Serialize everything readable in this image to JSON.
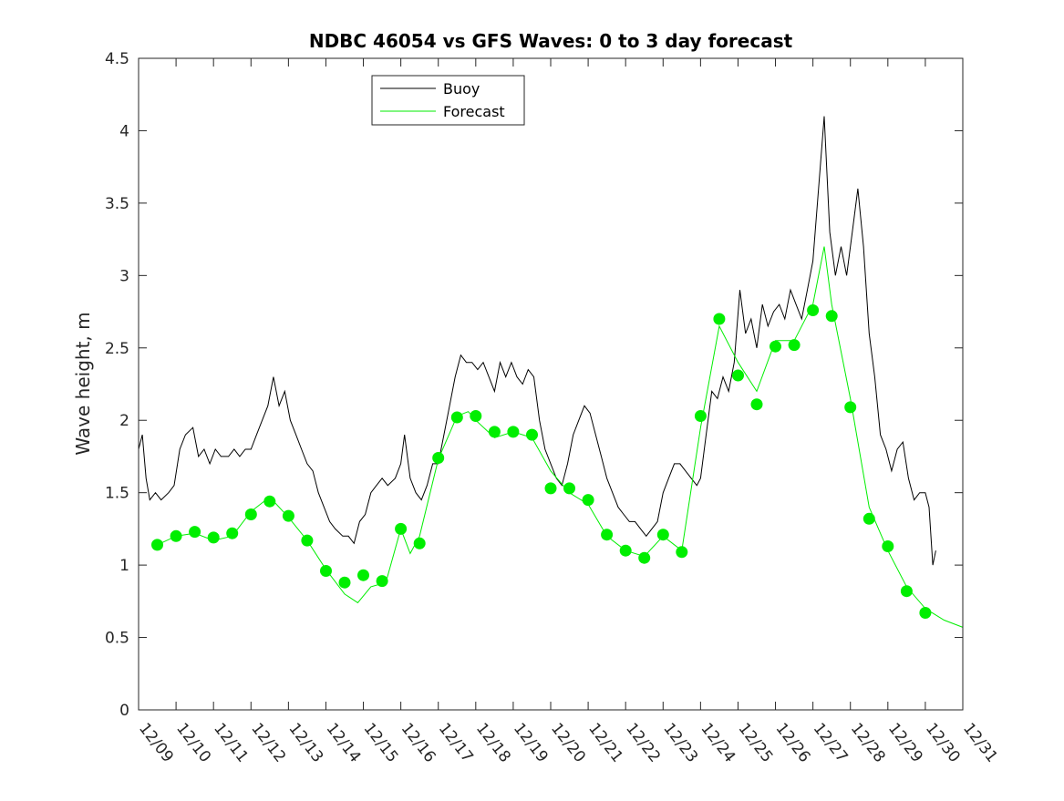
{
  "chart_data": {
    "type": "line",
    "title": "NDBC 46054 vs GFS Waves: 0 to 3 day forecast",
    "xlabel": "",
    "ylabel": "Wave height, m",
    "xlim": [
      0,
      22
    ],
    "ylim": [
      0,
      4.5
    ],
    "grid": false,
    "legend_position": "top-center",
    "x_tick_labels": [
      "12/09",
      "12/10",
      "12/11",
      "12/12",
      "12/13",
      "12/14",
      "12/15",
      "12/16",
      "12/17",
      "12/18",
      "12/19",
      "12/20",
      "12/21",
      "12/22",
      "12/23",
      "12/24",
      "12/25",
      "12/26",
      "12/27",
      "12/28",
      "12/29",
      "12/30",
      "12/31"
    ],
    "y_tick_values": [
      0,
      0.5,
      1,
      1.5,
      2,
      2.5,
      3,
      3.5,
      4,
      4.5
    ],
    "y_tick_labels": [
      "0",
      "0.5",
      "1",
      "1.5",
      "2",
      "2.5",
      "3",
      "3.5",
      "4",
      "4.5"
    ],
    "x_unit": "days since 12/09 00Z",
    "series": [
      {
        "name": "Buoy",
        "color": "#000000",
        "style": "line",
        "points": [
          [
            0,
            1.8
          ],
          [
            0.1,
            1.9
          ],
          [
            0.2,
            1.6
          ],
          [
            0.3,
            1.45
          ],
          [
            0.45,
            1.5
          ],
          [
            0.6,
            1.45
          ],
          [
            0.8,
            1.5
          ],
          [
            0.95,
            1.55
          ],
          [
            1.1,
            1.8
          ],
          [
            1.25,
            1.9
          ],
          [
            1.45,
            1.95
          ],
          [
            1.6,
            1.75
          ],
          [
            1.75,
            1.8
          ],
          [
            1.9,
            1.7
          ],
          [
            2.05,
            1.8
          ],
          [
            2.2,
            1.75
          ],
          [
            2.4,
            1.75
          ],
          [
            2.55,
            1.8
          ],
          [
            2.7,
            1.75
          ],
          [
            2.85,
            1.8
          ],
          [
            3.0,
            1.8
          ],
          [
            3.15,
            1.9
          ],
          [
            3.3,
            2.0
          ],
          [
            3.45,
            2.1
          ],
          [
            3.6,
            2.3
          ],
          [
            3.75,
            2.1
          ],
          [
            3.9,
            2.2
          ],
          [
            4.05,
            2.0
          ],
          [
            4.2,
            1.9
          ],
          [
            4.35,
            1.8
          ],
          [
            4.5,
            1.7
          ],
          [
            4.65,
            1.65
          ],
          [
            4.8,
            1.5
          ],
          [
            4.95,
            1.4
          ],
          [
            5.1,
            1.3
          ],
          [
            5.25,
            1.25
          ],
          [
            5.45,
            1.2
          ],
          [
            5.6,
            1.2
          ],
          [
            5.75,
            1.15
          ],
          [
            5.9,
            1.3
          ],
          [
            6.05,
            1.35
          ],
          [
            6.2,
            1.5
          ],
          [
            6.35,
            1.55
          ],
          [
            6.5,
            1.6
          ],
          [
            6.65,
            1.55
          ],
          [
            6.85,
            1.6
          ],
          [
            7.0,
            1.7
          ],
          [
            7.1,
            1.9
          ],
          [
            7.25,
            1.6
          ],
          [
            7.4,
            1.5
          ],
          [
            7.55,
            1.45
          ],
          [
            7.7,
            1.55
          ],
          [
            7.85,
            1.7
          ],
          [
            8.0,
            1.7
          ],
          [
            8.15,
            1.9
          ],
          [
            8.3,
            2.1
          ],
          [
            8.45,
            2.3
          ],
          [
            8.6,
            2.45
          ],
          [
            8.75,
            2.4
          ],
          [
            8.9,
            2.4
          ],
          [
            9.05,
            2.35
          ],
          [
            9.2,
            2.4
          ],
          [
            9.35,
            2.3
          ],
          [
            9.5,
            2.2
          ],
          [
            9.65,
            2.4
          ],
          [
            9.8,
            2.3
          ],
          [
            9.95,
            2.4
          ],
          [
            10.1,
            2.3
          ],
          [
            10.25,
            2.25
          ],
          [
            10.4,
            2.35
          ],
          [
            10.55,
            2.3
          ],
          [
            10.7,
            2.0
          ],
          [
            10.85,
            1.8
          ],
          [
            11.0,
            1.7
          ],
          [
            11.15,
            1.6
          ],
          [
            11.3,
            1.55
          ],
          [
            11.45,
            1.7
          ],
          [
            11.6,
            1.9
          ],
          [
            11.75,
            2.0
          ],
          [
            11.9,
            2.1
          ],
          [
            12.05,
            2.05
          ],
          [
            12.2,
            1.9
          ],
          [
            12.35,
            1.75
          ],
          [
            12.5,
            1.6
          ],
          [
            12.65,
            1.5
          ],
          [
            12.8,
            1.4
          ],
          [
            12.95,
            1.35
          ],
          [
            13.1,
            1.3
          ],
          [
            13.25,
            1.3
          ],
          [
            13.4,
            1.25
          ],
          [
            13.55,
            1.2
          ],
          [
            13.7,
            1.25
          ],
          [
            13.85,
            1.3
          ],
          [
            14.0,
            1.5
          ],
          [
            14.15,
            1.6
          ],
          [
            14.3,
            1.7
          ],
          [
            14.45,
            1.7
          ],
          [
            14.6,
            1.65
          ],
          [
            14.75,
            1.6
          ],
          [
            14.9,
            1.55
          ],
          [
            15.0,
            1.6
          ],
          [
            15.15,
            1.9
          ],
          [
            15.3,
            2.2
          ],
          [
            15.45,
            2.15
          ],
          [
            15.6,
            2.3
          ],
          [
            15.75,
            2.2
          ],
          [
            15.9,
            2.4
          ],
          [
            16.05,
            2.9
          ],
          [
            16.2,
            2.6
          ],
          [
            16.35,
            2.7
          ],
          [
            16.5,
            2.5
          ],
          [
            16.65,
            2.8
          ],
          [
            16.8,
            2.65
          ],
          [
            16.95,
            2.75
          ],
          [
            17.1,
            2.8
          ],
          [
            17.25,
            2.7
          ],
          [
            17.4,
            2.9
          ],
          [
            17.55,
            2.8
          ],
          [
            17.7,
            2.7
          ],
          [
            17.85,
            2.9
          ],
          [
            18.0,
            3.1
          ],
          [
            18.15,
            3.6
          ],
          [
            18.3,
            4.1
          ],
          [
            18.45,
            3.3
          ],
          [
            18.6,
            3.0
          ],
          [
            18.75,
            3.2
          ],
          [
            18.9,
            3.0
          ],
          [
            19.05,
            3.3
          ],
          [
            19.2,
            3.6
          ],
          [
            19.35,
            3.2
          ],
          [
            19.5,
            2.6
          ],
          [
            19.65,
            2.3
          ],
          [
            19.8,
            1.9
          ],
          [
            19.95,
            1.8
          ],
          [
            20.1,
            1.65
          ],
          [
            20.25,
            1.8
          ],
          [
            20.4,
            1.85
          ],
          [
            20.55,
            1.6
          ],
          [
            20.7,
            1.45
          ],
          [
            20.85,
            1.5
          ],
          [
            21.0,
            1.5
          ],
          [
            21.1,
            1.4
          ],
          [
            21.2,
            1.0
          ],
          [
            21.28,
            1.1
          ]
        ]
      },
      {
        "name": "Forecast",
        "color": "#00ee00",
        "style": "line",
        "points": [
          [
            0.5,
            1.14
          ],
          [
            1,
            1.2
          ],
          [
            1.5,
            1.22
          ],
          [
            2,
            1.17
          ],
          [
            2.5,
            1.2
          ],
          [
            3,
            1.37
          ],
          [
            3.5,
            1.47
          ],
          [
            4,
            1.33
          ],
          [
            4.5,
            1.17
          ],
          [
            5,
            0.97
          ],
          [
            5.5,
            0.8
          ],
          [
            5.85,
            0.74
          ],
          [
            6.2,
            0.85
          ],
          [
            6.6,
            0.88
          ],
          [
            7,
            1.25
          ],
          [
            7.25,
            1.08
          ],
          [
            7.5,
            1.2
          ],
          [
            8,
            1.73
          ],
          [
            8.5,
            2.03
          ],
          [
            8.8,
            2.06
          ],
          [
            9,
            2.0
          ],
          [
            9.5,
            1.88
          ],
          [
            10,
            1.92
          ],
          [
            10.5,
            1.88
          ],
          [
            11,
            1.65
          ],
          [
            11.5,
            1.5
          ],
          [
            12,
            1.42
          ],
          [
            12.5,
            1.2
          ],
          [
            13,
            1.1
          ],
          [
            13.5,
            1.06
          ],
          [
            14,
            1.2
          ],
          [
            14.5,
            1.1
          ],
          [
            15,
            1.95
          ],
          [
            15.5,
            2.65
          ],
          [
            16,
            2.4
          ],
          [
            16.5,
            2.2
          ],
          [
            17,
            2.55
          ],
          [
            17.5,
            2.55
          ],
          [
            18,
            2.8
          ],
          [
            18.3,
            3.2
          ],
          [
            18.5,
            2.8
          ],
          [
            19,
            2.15
          ],
          [
            19.5,
            1.4
          ],
          [
            20,
            1.1
          ],
          [
            20.5,
            0.85
          ],
          [
            21,
            0.7
          ],
          [
            21.5,
            0.62
          ],
          [
            22,
            0.57
          ]
        ]
      }
    ],
    "forecast_markers": [
      [
        0.5,
        1.14
      ],
      [
        1,
        1.2
      ],
      [
        1.5,
        1.23
      ],
      [
        2,
        1.19
      ],
      [
        2.5,
        1.22
      ],
      [
        3,
        1.35
      ],
      [
        3.5,
        1.44
      ],
      [
        4,
        1.34
      ],
      [
        4.5,
        1.17
      ],
      [
        5,
        0.96
      ],
      [
        5.5,
        0.88
      ],
      [
        6,
        0.93
      ],
      [
        6.5,
        0.89
      ],
      [
        7,
        1.25
      ],
      [
        7.5,
        1.15
      ],
      [
        8,
        1.74
      ],
      [
        8.5,
        2.02
      ],
      [
        9,
        2.03
      ],
      [
        9.5,
        1.92
      ],
      [
        10,
        1.92
      ],
      [
        10.5,
        1.9
      ],
      [
        11,
        1.53
      ],
      [
        11.5,
        1.53
      ],
      [
        12,
        1.45
      ],
      [
        12.5,
        1.21
      ],
      [
        13,
        1.1
      ],
      [
        13.5,
        1.05
      ],
      [
        14,
        1.21
      ],
      [
        14.5,
        1.09
      ],
      [
        15,
        2.03
      ],
      [
        15.5,
        2.7
      ],
      [
        16,
        2.31
      ],
      [
        16.5,
        2.11
      ],
      [
        17,
        2.51
      ],
      [
        17.5,
        2.52
      ],
      [
        18,
        2.76
      ],
      [
        18.5,
        2.72
      ],
      [
        19,
        2.09
      ],
      [
        19.5,
        1.32
      ],
      [
        20,
        1.13
      ],
      [
        20.5,
        0.82
      ],
      [
        21,
        0.67
      ]
    ]
  }
}
